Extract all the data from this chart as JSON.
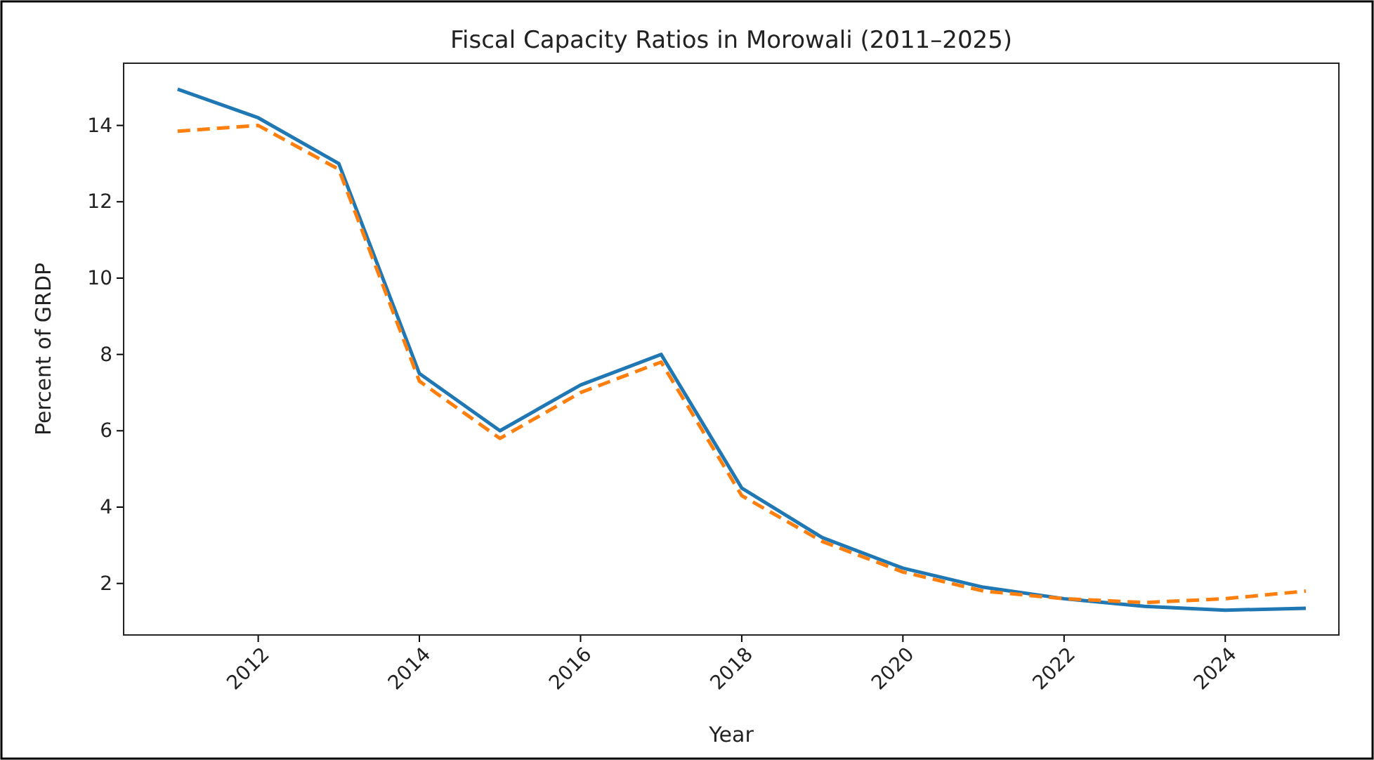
{
  "chart_data": {
    "type": "line",
    "title": "Fiscal Capacity Ratios in Morowali (2011–2025)",
    "xlabel": "Year",
    "ylabel": "Percent of GRDP",
    "x": [
      2011,
      2012,
      2013,
      2014,
      2015,
      2016,
      2017,
      2018,
      2019,
      2020,
      2021,
      2022,
      2023,
      2024,
      2025
    ],
    "series": [
      {
        "color": "#1f77b4",
        "line_style": "solid",
        "values": [
          14.95,
          14.2,
          13.0,
          7.5,
          6.0,
          7.2,
          8.0,
          4.5,
          3.2,
          2.4,
          1.9,
          1.6,
          1.4,
          1.3,
          1.35
        ]
      },
      {
        "color": "#ff7f0e",
        "line_style": "dashed",
        "values": [
          13.85,
          14.0,
          12.85,
          7.3,
          5.8,
          7.0,
          7.8,
          4.3,
          3.1,
          2.3,
          1.8,
          1.6,
          1.5,
          1.6,
          1.8
        ]
      }
    ],
    "xlim": [
      2010.33,
      2025.41
    ],
    "xticks": [
      2012,
      2014,
      2016,
      2018,
      2020,
      2022,
      2024
    ],
    "ylim": [
      0.65,
      15.63
    ],
    "yticks": [
      2,
      4,
      6,
      8,
      10,
      12,
      14
    ],
    "grid": false,
    "marker": "none"
  }
}
